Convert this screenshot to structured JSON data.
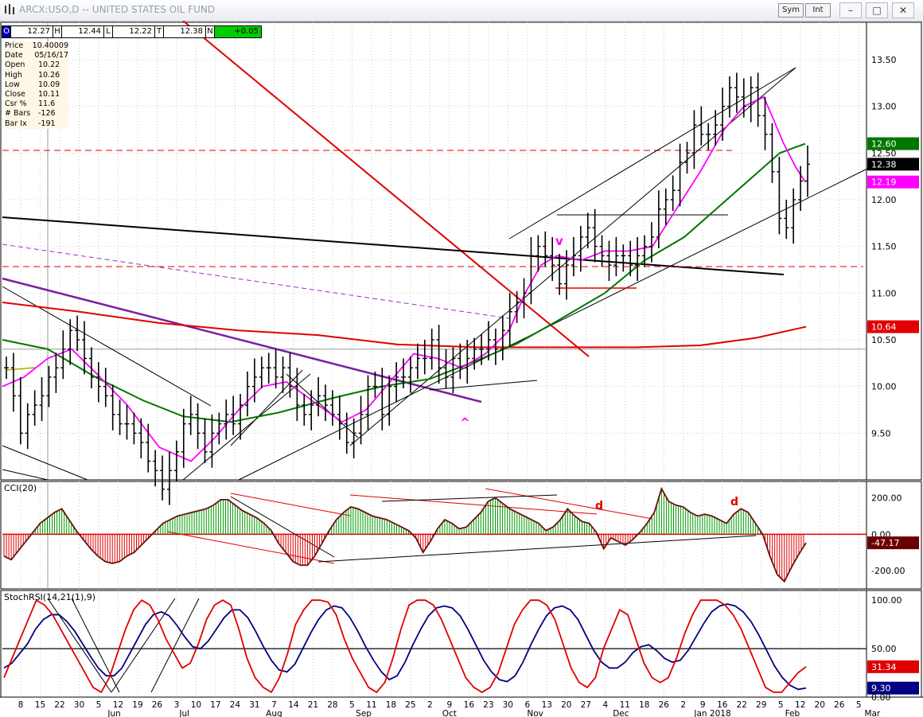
{
  "window": {
    "title": "ARCX:USO,D -- UNITED STATES OIL FUND",
    "sym_button": "Sym",
    "int_button": "Int",
    "minimize": "–",
    "maximize": "□",
    "close": "✕"
  },
  "quote": [
    {
      "label": "O",
      "value": "12.27"
    },
    {
      "label": "H",
      "value": "12.44"
    },
    {
      "label": "L",
      "value": "12.22"
    },
    {
      "label": "T",
      "value": "12.38"
    },
    {
      "label": "N",
      "value": "+0.05"
    }
  ],
  "info": [
    {
      "label": "Price",
      "value": "10.40009"
    },
    {
      "label": "Date",
      "value": "05/16/17"
    },
    {
      "label": "Open",
      "value": "10.22"
    },
    {
      "label": "High",
      "value": "10.26"
    },
    {
      "label": "Low",
      "value": "10.09"
    },
    {
      "label": "Close",
      "value": "10.11"
    },
    {
      "label": "Csr %",
      "value": "11.6"
    },
    {
      "label": "# Bars",
      "value": "-126"
    },
    {
      "label": "Bar Ix",
      "value": "-191"
    }
  ],
  "chart_data": [
    {
      "type": "line",
      "panel": "price",
      "title": "ARCX:USO,D -- UNITED STATES OIL FUND",
      "y_ticks": [
        "13.50",
        "13.00",
        "12.50",
        "12.00",
        "11.50",
        "11.00",
        "10.50",
        "10.00",
        "9.50"
      ],
      "ylim": [
        9.0,
        13.9
      ],
      "price_labels": [
        {
          "value": 12.6,
          "text": "12.60",
          "color": "#007700"
        },
        {
          "value": 12.38,
          "text": "12.38",
          "color": "#000000"
        },
        {
          "value": 12.19,
          "text": "12.19",
          "color": "#ff00ff"
        },
        {
          "value": 10.64,
          "text": "10.64",
          "color": "#e00000"
        }
      ],
      "closes_approx": [
        10.2,
        9.9,
        9.5,
        9.7,
        9.8,
        9.9,
        10.1,
        10.2,
        10.4,
        10.6,
        10.5,
        10.3,
        10.1,
        10.0,
        9.9,
        9.7,
        9.6,
        9.6,
        9.5,
        9.4,
        9.2,
        9.1,
        8.9,
        9.1,
        9.3,
        9.6,
        9.7,
        9.5,
        9.3,
        9.5,
        9.6,
        9.7,
        9.6,
        9.8,
        10.0,
        10.1,
        10.2,
        10.2,
        10.1,
        10.2,
        10.0,
        9.8,
        9.7,
        9.8,
        9.9,
        9.8,
        9.7,
        9.6,
        9.4,
        9.5,
        9.7,
        10.0,
        10.0,
        9.7,
        10.0,
        10.1,
        10.1,
        10.2,
        10.3,
        10.3,
        10.5,
        10.2,
        10.1,
        10.3,
        10.2,
        10.3,
        10.4,
        10.4,
        10.5,
        10.4,
        10.6,
        10.8,
        10.9,
        11.0,
        11.4,
        11.5,
        11.4,
        11.3,
        11.1,
        11.3,
        11.4,
        11.6,
        11.7,
        11.5,
        11.4,
        11.3,
        11.4,
        11.4,
        11.3,
        11.4,
        11.5,
        11.6,
        11.9,
        12.0,
        12.1,
        12.4,
        12.5,
        12.8,
        12.7,
        12.7,
        12.8,
        13.0,
        13.2,
        13.1,
        13.0,
        13.2,
        12.9,
        12.7,
        12.3,
        11.8,
        11.7,
        12.0,
        12.2,
        12.38
      ],
      "series": [
        {
          "name": "",
          "color": "#ff00ff"
        },
        {
          "name": "",
          "color": "#007700"
        },
        {
          "name": "",
          "color": "#e00000"
        }
      ],
      "annotations": [
        {
          "text": "v",
          "color": "#ff00ff"
        },
        {
          "text": "^",
          "color": "#ff00ff"
        }
      ]
    },
    {
      "type": "area",
      "panel": "cci",
      "title": "CCI(20)",
      "y_ticks": [
        "200.00",
        "0.00",
        "-200.00"
      ],
      "ylim": [
        -300,
        290
      ],
      "current_label": "-47.17",
      "values_approx": [
        -120,
        -140,
        -90,
        -40,
        10,
        60,
        90,
        120,
        140,
        80,
        20,
        -30,
        -80,
        -120,
        -150,
        -160,
        -150,
        -120,
        -100,
        -60,
        -20,
        20,
        60,
        80,
        100,
        110,
        120,
        130,
        140,
        160,
        190,
        190,
        160,
        130,
        110,
        90,
        60,
        20,
        -50,
        -100,
        -150,
        -170,
        -170,
        -120,
        -50,
        20,
        80,
        120,
        150,
        140,
        120,
        100,
        90,
        80,
        60,
        40,
        20,
        -20,
        -100,
        -40,
        30,
        80,
        60,
        30,
        40,
        80,
        120,
        180,
        200,
        170,
        140,
        120,
        100,
        80,
        60,
        20,
        40,
        80,
        140,
        100,
        70,
        60,
        10,
        -80,
        -20,
        -40,
        -60,
        -30,
        10,
        60,
        120,
        250,
        180,
        160,
        150,
        120,
        100,
        110,
        100,
        80,
        60,
        110,
        140,
        120,
        60,
        0,
        -120,
        -220,
        -260,
        -180,
        -110,
        -47.17
      ],
      "annotations": [
        {
          "text": "d",
          "color": "#e00000"
        },
        {
          "text": "d",
          "color": "#e00000"
        }
      ]
    },
    {
      "type": "line",
      "panel": "stochrsi",
      "title": "StochRSI(14,21(1),9)",
      "y_ticks": [
        "100.00",
        "50.00",
        "0.00"
      ],
      "ylim": [
        0,
        110
      ],
      "series": [
        {
          "name": "",
          "color": "#e00000",
          "current_label": "31.34"
        },
        {
          "name": "",
          "color": "#000080",
          "current_label": "9.30"
        }
      ],
      "values_approx": [
        20,
        40,
        60,
        80,
        100,
        95,
        85,
        70,
        55,
        40,
        25,
        10,
        5,
        20,
        45,
        70,
        90,
        100,
        95,
        80,
        60,
        45,
        30,
        35,
        55,
        80,
        95,
        100,
        95,
        70,
        40,
        20,
        10,
        5,
        20,
        45,
        75,
        90,
        100,
        100,
        98,
        85,
        60,
        40,
        25,
        10,
        5,
        15,
        40,
        70,
        95,
        100,
        100,
        95,
        80,
        60,
        40,
        20,
        10,
        5,
        10,
        25,
        50,
        75,
        90,
        100,
        100,
        95,
        80,
        55,
        30,
        15,
        10,
        20,
        50,
        70,
        90,
        85,
        60,
        35,
        20,
        15,
        20,
        40,
        65,
        85,
        100,
        100,
        100,
        95,
        85,
        70,
        50,
        30,
        10,
        5,
        5,
        15,
        25,
        31.34
      ],
      "signal_approx": [
        30,
        35,
        45,
        55,
        70,
        80,
        85,
        85,
        78,
        68,
        55,
        42,
        30,
        22,
        22,
        30,
        45,
        60,
        75,
        85,
        88,
        84,
        74,
        62,
        52,
        50,
        58,
        70,
        82,
        90,
        90,
        82,
        68,
        52,
        38,
        28,
        26,
        34,
        50,
        66,
        80,
        90,
        94,
        92,
        82,
        68,
        52,
        38,
        26,
        18,
        22,
        36,
        54,
        70,
        84,
        92,
        94,
        92,
        84,
        70,
        54,
        38,
        26,
        18,
        16,
        22,
        36,
        54,
        70,
        84,
        92,
        94,
        90,
        80,
        64,
        48,
        36,
        30,
        30,
        36,
        46,
        52,
        54,
        48,
        40,
        36,
        38,
        48,
        62,
        76,
        88,
        94,
        96,
        94,
        88,
        78,
        64,
        48,
        32,
        20,
        12,
        8,
        9.3
      ]
    }
  ],
  "x_axis": {
    "day_labels": [
      "8",
      "15",
      "22",
      "30",
      "5",
      "12",
      "19",
      "26",
      "3",
      "10",
      "17",
      "24",
      "31",
      "7",
      "14",
      "21",
      "28",
      "5",
      "11",
      "18",
      "25",
      "2",
      "9",
      "16",
      "23",
      "30",
      "6",
      "13",
      "20",
      "27",
      "4",
      "11",
      "18",
      "26",
      "2",
      "9",
      "16",
      "22",
      "29",
      "5",
      "12",
      "20",
      "26",
      "5"
    ],
    "month_labels": [
      "Jun",
      "Jul",
      "Aug",
      "Sep",
      "Oct",
      "Nov",
      "Dec",
      "Jan 2018",
      "Feb",
      "Mar"
    ]
  }
}
